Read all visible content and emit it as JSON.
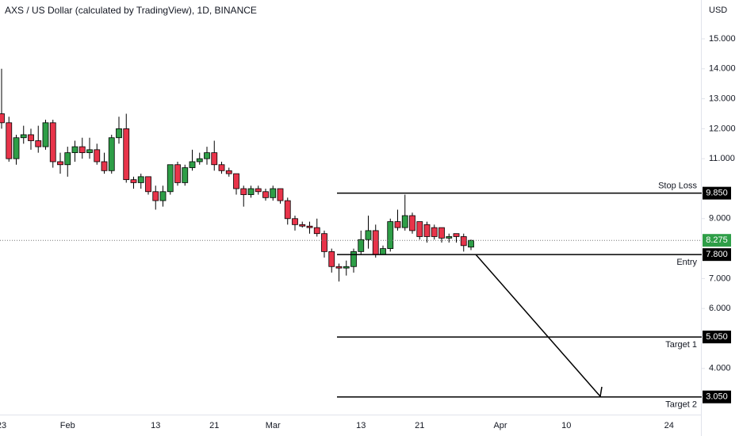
{
  "chart_data": {
    "type": "candlestick",
    "title": "AXS / US Dollar (calculated by TradingView), 1D, BINANCE",
    "y_unit": "USD",
    "categories": [
      "23",
      null,
      null,
      null,
      null,
      null,
      null,
      null,
      null,
      "Feb",
      null,
      null,
      null,
      null,
      null,
      null,
      null,
      null,
      null,
      null,
      null,
      "13",
      null,
      null,
      null,
      null,
      null,
      null,
      null,
      "21",
      null,
      null,
      null,
      null,
      null,
      null,
      null,
      "Mar",
      null,
      null,
      null,
      null,
      null,
      null,
      null,
      null,
      null,
      null,
      null,
      "13",
      null,
      null,
      null,
      null,
      null,
      null,
      null,
      "21",
      null,
      null,
      null,
      null,
      null,
      null,
      null,
      null,
      null,
      null,
      "Apr",
      null,
      null,
      null,
      null,
      null,
      null,
      null,
      null,
      "10",
      null,
      null,
      null,
      null,
      null,
      null,
      null,
      null,
      null,
      null,
      null,
      null,
      null,
      "24",
      null,
      null,
      null
    ],
    "open": [
      12.5,
      12.2,
      11.0,
      11.7,
      11.8,
      11.6,
      11.4,
      12.2,
      10.9,
      10.8,
      11.2,
      11.4,
      11.2,
      11.3,
      10.9,
      10.6,
      11.7,
      12.0,
      10.3,
      10.2,
      10.4,
      9.9,
      9.6,
      9.9,
      10.8,
      10.2,
      10.7,
      10.9,
      11.0,
      11.2,
      10.8,
      10.6,
      10.5,
      10.0,
      9.8,
      10.0,
      9.9,
      9.7,
      10.0,
      9.6,
      9.0,
      8.8,
      8.75,
      8.7,
      8.5,
      7.9,
      7.4,
      7.35,
      7.4,
      7.9,
      8.3,
      8.6,
      7.8,
      8.0,
      8.9,
      8.7,
      9.1,
      8.9,
      8.8,
      8.7,
      8.7,
      8.35,
      8.5,
      8.4,
      8.05,
      null,
      null,
      null,
      null,
      null,
      null,
      null,
      null,
      null,
      null,
      null,
      null,
      null,
      null,
      null,
      null,
      null,
      null,
      null,
      null,
      null,
      null,
      null,
      null,
      null,
      null,
      null,
      null,
      null,
      null
    ],
    "high": [
      14.0,
      12.4,
      11.8,
      12.1,
      12.0,
      12.1,
      12.3,
      12.3,
      11.2,
      11.4,
      11.6,
      11.7,
      11.7,
      11.5,
      11.2,
      11.8,
      12.4,
      12.5,
      10.4,
      10.5,
      10.4,
      10.1,
      10.1,
      10.8,
      10.9,
      10.8,
      11.3,
      11.2,
      11.4,
      11.6,
      10.9,
      10.7,
      10.5,
      10.1,
      10.1,
      10.1,
      10.0,
      10.1,
      10.0,
      9.7,
      9.1,
      8.9,
      8.9,
      9.0,
      8.6,
      8.0,
      7.5,
      7.6,
      8.0,
      8.6,
      9.1,
      8.8,
      8.1,
      9.0,
      9.3,
      9.8,
      9.2,
      8.9,
      8.9,
      8.8,
      8.7,
      8.5,
      8.5,
      8.5,
      8.3,
      null,
      null,
      null,
      null,
      null,
      null,
      null,
      null,
      null,
      null,
      null,
      null,
      null,
      null,
      null,
      null,
      null,
      null,
      null,
      null,
      null,
      null,
      null,
      null,
      null,
      null,
      null,
      null,
      null,
      null
    ],
    "low": [
      12.0,
      10.9,
      10.8,
      11.5,
      11.3,
      11.2,
      11.3,
      10.7,
      10.5,
      10.4,
      10.9,
      11.0,
      11.0,
      10.8,
      10.5,
      10.5,
      11.5,
      10.2,
      10.0,
      10.0,
      9.8,
      9.3,
      9.4,
      9.8,
      10.1,
      10.1,
      10.6,
      10.8,
      10.8,
      10.6,
      10.5,
      10.4,
      9.8,
      9.4,
      9.7,
      9.8,
      9.6,
      9.6,
      9.5,
      8.8,
      8.6,
      8.7,
      8.5,
      8.4,
      7.7,
      7.2,
      6.9,
      7.1,
      7.2,
      7.8,
      8.0,
      7.7,
      7.8,
      7.9,
      8.6,
      8.6,
      8.5,
      8.3,
      8.2,
      8.3,
      8.2,
      8.2,
      8.2,
      7.9,
      7.95,
      null,
      null,
      null,
      null,
      null,
      null,
      null,
      null,
      null,
      null,
      null,
      null,
      null,
      null,
      null,
      null,
      null,
      null,
      null,
      null,
      null,
      null,
      null,
      null,
      null,
      null,
      null,
      null,
      null,
      null
    ],
    "close": [
      12.2,
      11.0,
      11.7,
      11.8,
      11.6,
      11.4,
      12.2,
      10.9,
      10.8,
      11.2,
      11.4,
      11.2,
      11.3,
      10.9,
      10.6,
      11.7,
      12.0,
      10.3,
      10.2,
      10.4,
      9.9,
      9.6,
      9.9,
      10.8,
      10.2,
      10.7,
      10.9,
      11.0,
      11.2,
      10.8,
      10.6,
      10.5,
      10.0,
      9.8,
      10.0,
      9.9,
      9.7,
      10.0,
      9.6,
      9.0,
      8.8,
      8.75,
      8.7,
      8.5,
      7.9,
      7.4,
      7.35,
      7.4,
      7.9,
      8.3,
      8.6,
      7.8,
      8.0,
      8.9,
      8.7,
      9.1,
      8.6,
      8.4,
      8.4,
      8.4,
      8.35,
      8.4,
      8.4,
      8.1,
      8.275,
      null,
      null,
      null,
      null,
      null,
      null,
      null,
      null,
      null,
      null,
      null,
      null,
      null,
      null,
      null,
      null,
      null,
      null,
      null,
      null,
      null,
      null,
      null,
      null,
      null,
      null,
      null,
      null,
      null,
      null
    ],
    "up_color": "#2e9e47",
    "down_color": "#e8344a",
    "last_price": 8.275,
    "last_price_color": "#2e9e47",
    "levels": [
      {
        "name": "Stop Loss",
        "price": {
          "value": 9.85,
          "label": "9.850"
        }
      },
      {
        "name": "Entry",
        "price": {
          "value": 7.8,
          "label": "7.800"
        }
      },
      {
        "name": "Target 1",
        "price": {
          "value": 5.05,
          "label": "5.050"
        }
      },
      {
        "name": "Target 2",
        "price": {
          "value": 3.05,
          "label": "3.050"
        }
      }
    ],
    "ylim": [
      2.46,
      16.296
    ],
    "yticks": [
      {
        "value": 15,
        "label": "15.000"
      },
      {
        "value": 14,
        "label": "14.000"
      },
      {
        "value": 13,
        "label": "13.000"
      },
      {
        "value": 12,
        "label": "12.000"
      },
      {
        "value": 11,
        "label": "11.000"
      },
      {
        "value": 9,
        "label": "9.000"
      },
      {
        "value": 7,
        "label": "7.000"
      },
      {
        "value": 6,
        "label": "6.000"
      },
      {
        "value": 4,
        "label": "4.000"
      }
    ],
    "grid": false
  }
}
